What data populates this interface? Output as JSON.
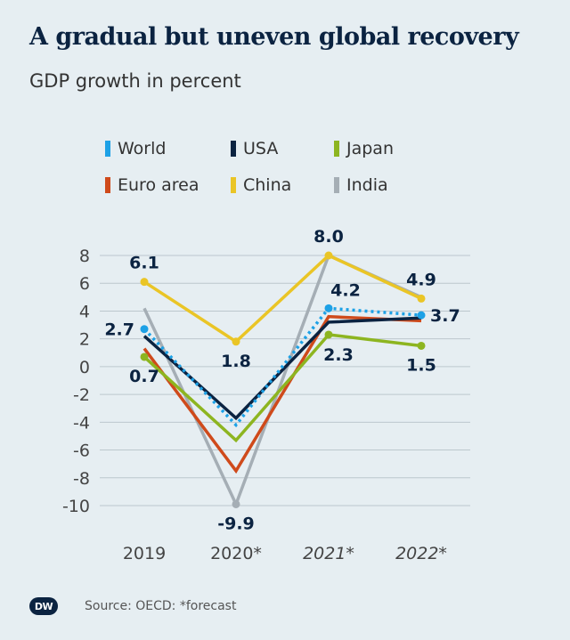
{
  "header": {
    "title": "A gradual but uneven global recovery",
    "subtitle": "GDP growth in percent"
  },
  "footer": {
    "logo_text": "DW",
    "source": "Source: OECD: *forecast"
  },
  "chart_data": {
    "type": "line",
    "categories": [
      "2019",
      "2020*",
      "2021*",
      "2022*"
    ],
    "italic_categories": [
      "2021*",
      "2022*"
    ],
    "ylim": [
      -10,
      8
    ],
    "yticks": [
      8,
      6,
      4,
      2,
      0,
      -2,
      -4,
      -6,
      -8,
      -10
    ],
    "grid": true,
    "legend_position": "top",
    "series": [
      {
        "name": "India",
        "color": "#a5aeb5",
        "dashed": false,
        "values": [
          4.2,
          -9.9,
          8.0,
          5.0
        ]
      },
      {
        "name": "Euro area",
        "color": "#cf4a1b",
        "dashed": false,
        "values": [
          1.3,
          -7.5,
          3.6,
          3.3
        ]
      },
      {
        "name": "Japan",
        "color": "#8db520",
        "dashed": false,
        "values": [
          0.7,
          -5.3,
          2.3,
          1.5
        ]
      },
      {
        "name": "China",
        "color": "#eac526",
        "dashed": false,
        "values": [
          6.1,
          1.8,
          8.0,
          4.9
        ]
      },
      {
        "name": "USA",
        "color": "#0b2341",
        "dashed": false,
        "values": [
          2.2,
          -3.7,
          3.2,
          3.5
        ]
      },
      {
        "name": "World",
        "color": "#1da1e6",
        "dashed": true,
        "values": [
          2.7,
          -4.2,
          4.2,
          3.7
        ]
      }
    ],
    "legend_order": [
      "World",
      "USA",
      "Japan",
      "Euro area",
      "China",
      "India"
    ],
    "data_labels": [
      {
        "series": "China",
        "index": 0,
        "text": "6.1",
        "pos": "above"
      },
      {
        "series": "World",
        "index": 0,
        "text": "2.7",
        "pos": "left"
      },
      {
        "series": "Japan",
        "index": 0,
        "text": "0.7",
        "pos": "below"
      },
      {
        "series": "China",
        "index": 1,
        "text": "1.8",
        "pos": "below"
      },
      {
        "series": "India",
        "index": 1,
        "text": "-9.9",
        "pos": "below"
      },
      {
        "series": "China",
        "index": 2,
        "text": "8.0",
        "pos": "above"
      },
      {
        "series": "World",
        "index": 2,
        "text": "4.2",
        "pos": "above-right"
      },
      {
        "series": "Japan",
        "index": 2,
        "text": "2.3",
        "pos": "below-right"
      },
      {
        "series": "China",
        "index": 3,
        "text": "4.9",
        "pos": "above"
      },
      {
        "series": "World",
        "index": 3,
        "text": "3.7",
        "pos": "right"
      },
      {
        "series": "Japan",
        "index": 3,
        "text": "1.5",
        "pos": "below"
      }
    ],
    "markers": [
      {
        "series": "China",
        "index": 0
      },
      {
        "series": "World",
        "index": 0
      },
      {
        "series": "Japan",
        "index": 0
      },
      {
        "series": "China",
        "index": 1
      },
      {
        "series": "India",
        "index": 1
      },
      {
        "series": "China",
        "index": 2
      },
      {
        "series": "World",
        "index": 2
      },
      {
        "series": "Japan",
        "index": 2
      },
      {
        "series": "China",
        "index": 3
      },
      {
        "series": "World",
        "index": 3
      },
      {
        "series": "Japan",
        "index": 3
      }
    ]
  }
}
